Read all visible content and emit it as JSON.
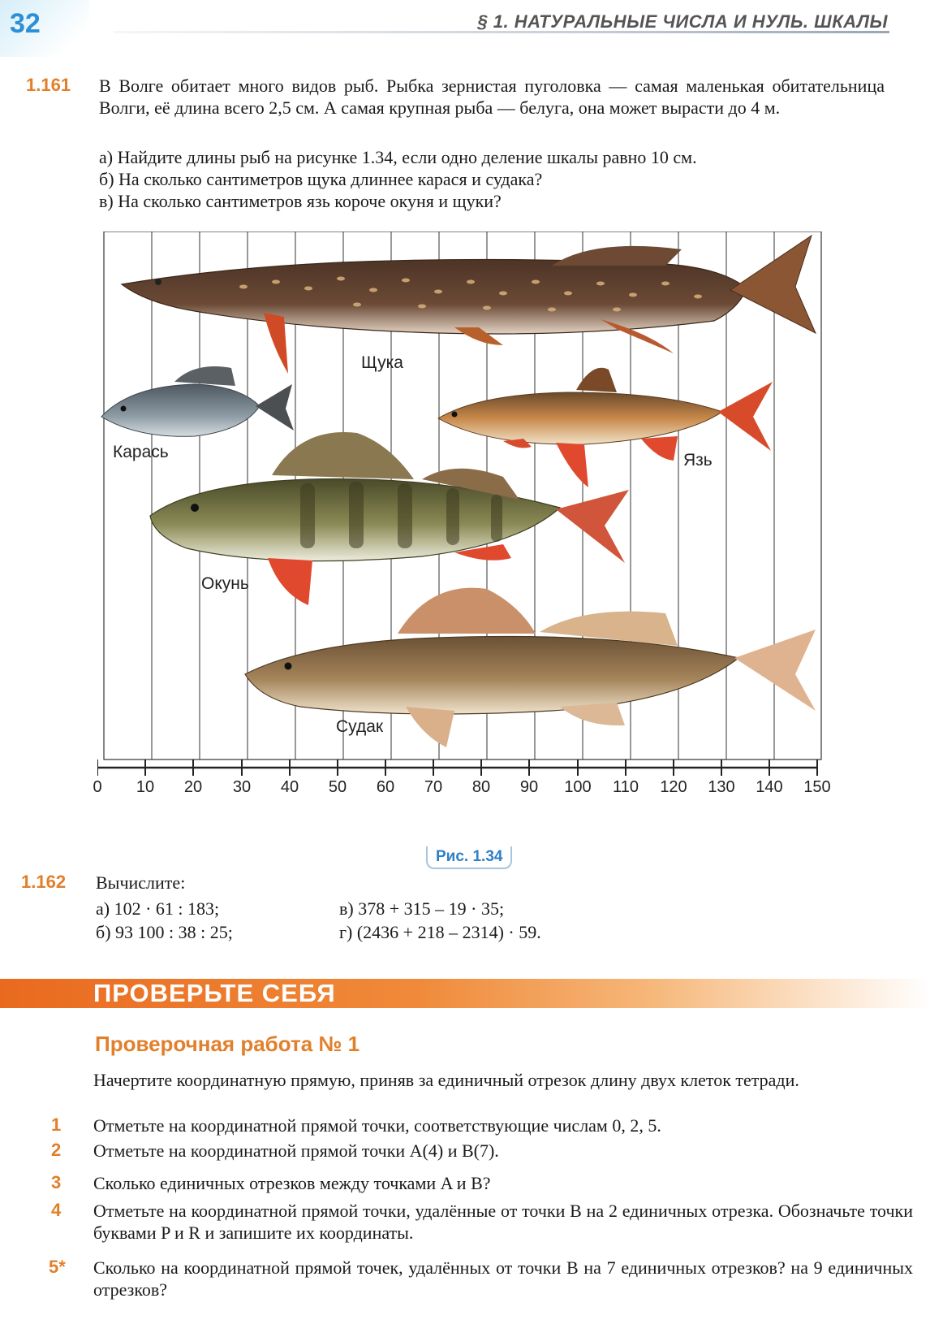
{
  "header": {
    "page_number": "32",
    "section_title": "§ 1. НАТУРАЛЬНЫЕ ЧИСЛА И НУЛЬ. ШКАЛЫ"
  },
  "problem_161": {
    "number": "1.161",
    "text": "В Волге обитает много видов рыб. Рыбка зернистая пуголовка — самая маленькая обитательница Волги, её длина всего 2,5 см. А самая крупная рыба — белуга, она может вырасти до 4 м.",
    "items": [
      "а) Найдите длины рыб на рисунке 1.34, если одно деление шкалы равно 10 см.",
      "б) На сколько сантиметров щука длиннее карася и судака?",
      "в) На сколько сантиметров язь короче окуня и щуки?"
    ]
  },
  "figure": {
    "fish_labels": {
      "pike": "Щука",
      "crucian": "Карась",
      "ide": "Язь",
      "perch": "Окунь",
      "zander": "Судак"
    },
    "scale_ticks": [
      "0",
      "10",
      "20",
      "30",
      "40",
      "50",
      "60",
      "70",
      "80",
      "90",
      "100",
      "110",
      "120",
      "130",
      "140",
      "150"
    ],
    "caption": "Рис. 1.34",
    "colors": {
      "pike_body": "#6b4a36",
      "pike_spots": "#d9b07a",
      "crucian_body": "#8c9aa3",
      "ide_body": "#c8894a",
      "perch_body": "#7b7a4a",
      "zander_body": "#9a7b52",
      "fin_red": "#e0492e"
    }
  },
  "problem_162": {
    "number": "1.162",
    "intro": "Вычислите:",
    "col1": [
      "а) 102 · 61 : 183;",
      "б) 93 100 : 38 : 25;"
    ],
    "col2": [
      "в) 378 + 315 – 19 · 35;",
      "г) (2436 + 218 – 2314) · 59."
    ]
  },
  "check_yourself": {
    "banner": "ПРОВЕРЬТЕ СЕБЯ",
    "title": "Проверочная работа № 1",
    "intro": "Начертите координатную прямую, приняв за единичный отрезок длину двух клеток тетради.",
    "tasks": [
      {
        "num": "1",
        "text": "Отметьте на координатной прямой точки, соответствующие числам 0, 2, 5."
      },
      {
        "num": "2",
        "text": "Отметьте на координатной прямой точки A(4) и B(7)."
      },
      {
        "num": "3",
        "text": "Сколько единичных отрезков между точками A и B?"
      },
      {
        "num": "4",
        "text": "Отметьте на координатной прямой точки, удалённые от точки B на 2 единичных отрезка. Обозначьте точки буквами P и R и запишите их координаты."
      },
      {
        "num": "5*",
        "text": "Сколько на координатной прямой точек, удалённых от точки B на 7 единичных отрезков? на 9 единичных отрезков?"
      }
    ]
  }
}
